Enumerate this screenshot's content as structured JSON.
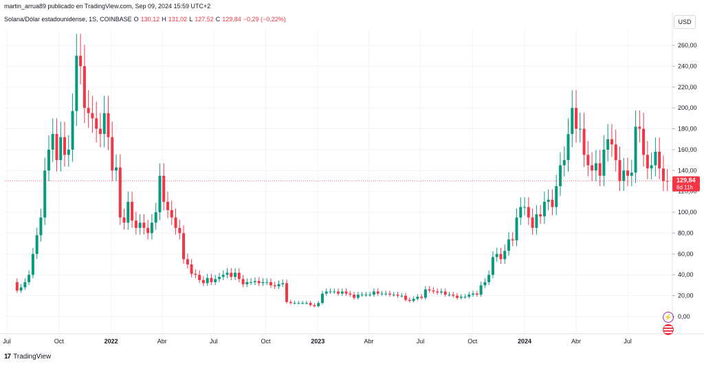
{
  "header": {
    "publisher": "martin_arrua89 publicado en TradingView.com, Sep 09, 2024 15:59 UTC+2"
  },
  "legend": {
    "symbol": "Solana/Dólar estadounidense, 1S, COINBASE",
    "o_label": "O",
    "o_value": "130,12",
    "h_label": "H",
    "h_value": "131,02",
    "l_label": "L",
    "l_value": "127,52",
    "c_label": "C",
    "c_value": "129,84",
    "change": "−0,29 (−0,22%)"
  },
  "toolbar": {
    "currency": "USD"
  },
  "price_tag": {
    "price": "129,84",
    "countdown": "6d 11h"
  },
  "footer": {
    "brand": "TradingView"
  },
  "icons": {
    "lightning": "lightning-icon",
    "flag": "us-flag-icon",
    "logo": "tradingview-logo-icon"
  },
  "colors": {
    "up": "#089981",
    "down": "#f23645",
    "grid": "#f0f3fa",
    "axis_text": "#131722"
  },
  "chart_data": {
    "type": "candlestick",
    "title": "",
    "ylim": [
      -10,
      270
    ],
    "y_ticks": [
      0,
      20,
      40,
      60,
      80,
      100,
      120,
      140,
      160,
      180,
      200,
      220,
      240,
      260
    ],
    "y_tick_labels": [
      "0,00",
      "20,00",
      "40,00",
      "60,00",
      "80,00",
      "100,00",
      "120,00",
      "140,00",
      "160,00",
      "180,00",
      "200,00",
      "220,00",
      "240,00",
      "260,00"
    ],
    "x_labels": [
      {
        "label": "Jul",
        "date": "2021-07-01"
      },
      {
        "label": "Oct",
        "date": "2021-10-01"
      },
      {
        "label": "2022",
        "date": "2022-01-01"
      },
      {
        "label": "Abr",
        "date": "2022-04-01"
      },
      {
        "label": "Jul",
        "date": "2022-07-01"
      },
      {
        "label": "Oct",
        "date": "2022-10-01"
      },
      {
        "label": "2023",
        "date": "2023-01-01"
      },
      {
        "label": "Abr",
        "date": "2023-04-01"
      },
      {
        "label": "Jul",
        "date": "2023-07-01"
      },
      {
        "label": "Oct",
        "date": "2023-10-01"
      },
      {
        "label": "2024",
        "date": "2024-01-01"
      },
      {
        "label": "Abr",
        "date": "2024-04-01"
      },
      {
        "label": "Jul",
        "date": "2024-07-01"
      }
    ],
    "last_price": 129.84,
    "anchors": [
      [
        "2021-07-05",
        33
      ],
      [
        "2021-07-19",
        25
      ],
      [
        "2021-07-26",
        28
      ],
      [
        "2021-08-02",
        33
      ],
      [
        "2021-08-09",
        40
      ],
      [
        "2021-08-16",
        60
      ],
      [
        "2021-08-23",
        78
      ],
      [
        "2021-08-30",
        95
      ],
      [
        "2021-09-06",
        140
      ],
      [
        "2021-09-13",
        160
      ],
      [
        "2021-09-20",
        175
      ],
      [
        "2021-09-27",
        150
      ],
      [
        "2021-10-04",
        172
      ],
      [
        "2021-10-11",
        155
      ],
      [
        "2021-10-18",
        160
      ],
      [
        "2021-10-25",
        197
      ],
      [
        "2021-11-01",
        250
      ],
      [
        "2021-11-08",
        240
      ],
      [
        "2021-11-15",
        200
      ],
      [
        "2021-11-22",
        195
      ],
      [
        "2021-11-29",
        190
      ],
      [
        "2021-12-06",
        180
      ],
      [
        "2021-12-13",
        175
      ],
      [
        "2021-12-20",
        195
      ],
      [
        "2021-12-27",
        172
      ],
      [
        "2022-01-03",
        140
      ],
      [
        "2022-01-10",
        143
      ],
      [
        "2022-01-17",
        95
      ],
      [
        "2022-01-24",
        90
      ],
      [
        "2022-01-31",
        110
      ],
      [
        "2022-02-07",
        92
      ],
      [
        "2022-02-14",
        85
      ],
      [
        "2022-02-21",
        90
      ],
      [
        "2022-02-28",
        85
      ],
      [
        "2022-03-07",
        80
      ],
      [
        "2022-03-14",
        90
      ],
      [
        "2022-03-21",
        100
      ],
      [
        "2022-03-28",
        135
      ],
      [
        "2022-04-04",
        110
      ],
      [
        "2022-04-11",
        102
      ],
      [
        "2022-04-18",
        95
      ],
      [
        "2022-04-25",
        85
      ],
      [
        "2022-05-02",
        80
      ],
      [
        "2022-05-09",
        55
      ],
      [
        "2022-05-16",
        50
      ],
      [
        "2022-05-23",
        41
      ],
      [
        "2022-05-30",
        40
      ],
      [
        "2022-06-06",
        35
      ],
      [
        "2022-06-13",
        32
      ],
      [
        "2022-06-20",
        37
      ],
      [
        "2022-06-27",
        33
      ],
      [
        "2022-07-04",
        36
      ],
      [
        "2022-07-11",
        38
      ],
      [
        "2022-07-18",
        40
      ],
      [
        "2022-07-25",
        42
      ],
      [
        "2022-08-01",
        38
      ],
      [
        "2022-08-08",
        42
      ],
      [
        "2022-08-15",
        36
      ],
      [
        "2022-08-22",
        31
      ],
      [
        "2022-08-29",
        33
      ],
      [
        "2022-09-05",
        33
      ],
      [
        "2022-09-12",
        34
      ],
      [
        "2022-09-19",
        32
      ],
      [
        "2022-09-26",
        33
      ],
      [
        "2022-10-03",
        33
      ],
      [
        "2022-10-10",
        30
      ],
      [
        "2022-10-17",
        29
      ],
      [
        "2022-10-24",
        31
      ],
      [
        "2022-10-31",
        32
      ],
      [
        "2022-11-07",
        14
      ],
      [
        "2022-11-14",
        13
      ],
      [
        "2022-11-21",
        13
      ],
      [
        "2022-11-28",
        13
      ],
      [
        "2022-12-05",
        13
      ],
      [
        "2022-12-12",
        13
      ],
      [
        "2022-12-19",
        11
      ],
      [
        "2022-12-26",
        10
      ],
      [
        "2023-01-02",
        13
      ],
      [
        "2023-01-09",
        22
      ],
      [
        "2023-01-16",
        24
      ],
      [
        "2023-01-23",
        24
      ],
      [
        "2023-01-30",
        24
      ],
      [
        "2023-02-06",
        22
      ],
      [
        "2023-02-13",
        24
      ],
      [
        "2023-02-20",
        22
      ],
      [
        "2023-02-27",
        21
      ],
      [
        "2023-03-06",
        18
      ],
      [
        "2023-03-13",
        21
      ],
      [
        "2023-03-20",
        21
      ],
      [
        "2023-03-27",
        21
      ],
      [
        "2023-04-03",
        21
      ],
      [
        "2023-04-10",
        24
      ],
      [
        "2023-04-17",
        22
      ],
      [
        "2023-04-24",
        22
      ],
      [
        "2023-05-01",
        22
      ],
      [
        "2023-05-08",
        21
      ],
      [
        "2023-05-15",
        21
      ],
      [
        "2023-05-22",
        20
      ],
      [
        "2023-05-29",
        20
      ],
      [
        "2023-06-05",
        16
      ],
      [
        "2023-06-12",
        15
      ],
      [
        "2023-06-19",
        17
      ],
      [
        "2023-06-26",
        19
      ],
      [
        "2023-07-03",
        18
      ],
      [
        "2023-07-10",
        26
      ],
      [
        "2023-07-17",
        25
      ],
      [
        "2023-07-24",
        24
      ],
      [
        "2023-07-31",
        23
      ],
      [
        "2023-08-07",
        24
      ],
      [
        "2023-08-14",
        21
      ],
      [
        "2023-08-21",
        21
      ],
      [
        "2023-08-28",
        20
      ],
      [
        "2023-09-04",
        18
      ],
      [
        "2023-09-11",
        19
      ],
      [
        "2023-09-18",
        19
      ],
      [
        "2023-09-25",
        21
      ],
      [
        "2023-10-02",
        22
      ],
      [
        "2023-10-09",
        21
      ],
      [
        "2023-10-16",
        30
      ],
      [
        "2023-10-23",
        33
      ],
      [
        "2023-10-30",
        40
      ],
      [
        "2023-11-06",
        57
      ],
      [
        "2023-11-13",
        60
      ],
      [
        "2023-11-20",
        55
      ],
      [
        "2023-11-27",
        63
      ],
      [
        "2023-12-04",
        74
      ],
      [
        "2023-12-11",
        73
      ],
      [
        "2023-12-18",
        95
      ],
      [
        "2023-12-25",
        105
      ],
      [
        "2024-01-01",
        105
      ],
      [
        "2024-01-08",
        95
      ],
      [
        "2024-01-15",
        85
      ],
      [
        "2024-01-22",
        98
      ],
      [
        "2024-01-29",
        96
      ],
      [
        "2024-02-05",
        110
      ],
      [
        "2024-02-12",
        112
      ],
      [
        "2024-02-19",
        105
      ],
      [
        "2024-02-26",
        125
      ],
      [
        "2024-03-04",
        145
      ],
      [
        "2024-03-11",
        150
      ],
      [
        "2024-03-18",
        175
      ],
      [
        "2024-03-25",
        200
      ],
      [
        "2024-04-01",
        180
      ],
      [
        "2024-04-08",
        180
      ],
      [
        "2024-04-15",
        155
      ],
      [
        "2024-04-22",
        145
      ],
      [
        "2024-04-29",
        140
      ],
      [
        "2024-05-06",
        147
      ],
      [
        "2024-05-13",
        135
      ],
      [
        "2024-05-20",
        160
      ],
      [
        "2024-05-27",
        170
      ],
      [
        "2024-06-03",
        165
      ],
      [
        "2024-06-10",
        150
      ],
      [
        "2024-06-17",
        130
      ],
      [
        "2024-06-24",
        140
      ],
      [
        "2024-07-01",
        135
      ],
      [
        "2024-07-08",
        138
      ],
      [
        "2024-07-15",
        182
      ],
      [
        "2024-07-22",
        180
      ],
      [
        "2024-07-29",
        155
      ],
      [
        "2024-08-05",
        142
      ],
      [
        "2024-08-12",
        145
      ],
      [
        "2024-08-19",
        158
      ],
      [
        "2024-08-26",
        142
      ],
      [
        "2024-09-02",
        130
      ],
      [
        "2024-09-09",
        129.84
      ]
    ]
  }
}
